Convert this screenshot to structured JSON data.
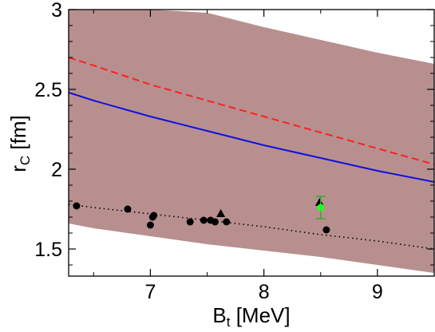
{
  "chart_data": {
    "type": "scatter",
    "xlabel": {
      "main": "B",
      "sub": "t",
      "rest": " [MeV]"
    },
    "ylabel": {
      "main": "r",
      "sub": "C",
      "rest": " [fm]"
    },
    "xlim": [
      6.28,
      9.5
    ],
    "ylim": [
      1.33,
      3.0
    ],
    "x_ticks": [
      7,
      8,
      9
    ],
    "y_ticks": [
      1.5,
      2,
      2.5,
      3
    ],
    "y_tick_labels": [
      "1.5",
      "2",
      "2.5",
      "3"
    ],
    "grid": false,
    "band": {
      "color": "#b88f8f",
      "x": [
        6.28,
        6.5,
        7.0,
        7.5,
        8.0,
        8.5,
        9.0,
        9.5
      ],
      "upper": [
        3.0,
        3.0,
        3.0,
        2.98,
        2.89,
        2.81,
        2.73,
        2.66
      ],
      "lower": [
        1.66,
        1.63,
        1.58,
        1.53,
        1.49,
        1.45,
        1.4,
        1.35
      ]
    },
    "series": [
      {
        "style": "dashed",
        "color": "#ff2020",
        "x": [
          6.28,
          6.5,
          7.0,
          7.5,
          8.0,
          8.5,
          9.0,
          9.5
        ],
        "y": [
          2.7,
          2.65,
          2.53,
          2.43,
          2.33,
          2.23,
          2.13,
          2.03
        ]
      },
      {
        "style": "solid",
        "color": "#1010e0",
        "x": [
          6.28,
          6.5,
          7.0,
          7.5,
          8.0,
          8.5,
          9.0,
          9.5
        ],
        "y": [
          2.48,
          2.43,
          2.33,
          2.24,
          2.15,
          2.07,
          1.99,
          1.92
        ]
      },
      {
        "style": "dotted",
        "color": "#000000",
        "x": [
          6.28,
          6.5,
          7.0,
          7.5,
          8.0,
          8.5,
          9.0,
          9.5
        ],
        "y": [
          1.78,
          1.76,
          1.72,
          1.68,
          1.64,
          1.59,
          1.55,
          1.5
        ]
      }
    ],
    "points": {
      "circles": [
        {
          "x": 6.35,
          "y": 1.77
        },
        {
          "x": 6.8,
          "y": 1.75
        },
        {
          "x": 7.0,
          "y": 1.65
        },
        {
          "x": 7.02,
          "y": 1.7
        },
        {
          "x": 7.03,
          "y": 1.71
        },
        {
          "x": 7.35,
          "y": 1.67
        },
        {
          "x": 7.47,
          "y": 1.68
        },
        {
          "x": 7.53,
          "y": 1.68
        },
        {
          "x": 7.57,
          "y": 1.67
        },
        {
          "x": 7.67,
          "y": 1.67
        },
        {
          "x": 8.55,
          "y": 1.62
        }
      ],
      "triangles": [
        {
          "x": 7.62,
          "y": 1.72
        },
        {
          "x": 8.49,
          "y": 1.79
        }
      ],
      "error_point": {
        "x": 8.5,
        "y": 1.76,
        "yerr": 0.07,
        "color": "#22ff22",
        "bar_color": "#33aa33"
      }
    }
  }
}
